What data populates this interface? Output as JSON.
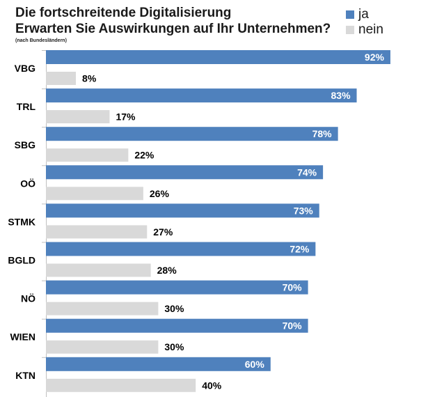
{
  "header": {
    "title": "Die fortschreitende Digitalisierung",
    "subtitle": "Erwarten Sie Auswirkungen auf Ihr Unternehmen?",
    "note": "(nach Bundesländern)"
  },
  "legend": [
    {
      "label": "ja",
      "color": "#4f81bd"
    },
    {
      "label": "nein",
      "color": "#d9d9d9"
    }
  ],
  "chart_data": {
    "type": "bar",
    "orientation": "horizontal",
    "categories": [
      "VBG",
      "TRL",
      "SBG",
      "OÖ",
      "STMK",
      "BGLD",
      "NÖ",
      "WIEN",
      "KTN"
    ],
    "series": [
      {
        "name": "ja",
        "color": "#4f81bd",
        "values": [
          92,
          83,
          78,
          74,
          73,
          72,
          70,
          70,
          60
        ]
      },
      {
        "name": "nein",
        "color": "#d9d9d9",
        "values": [
          8,
          17,
          22,
          26,
          27,
          28,
          30,
          30,
          40
        ]
      }
    ],
    "value_suffix": "%",
    "xlim": [
      0,
      100
    ],
    "grid": false,
    "legend_position": "top-right"
  }
}
